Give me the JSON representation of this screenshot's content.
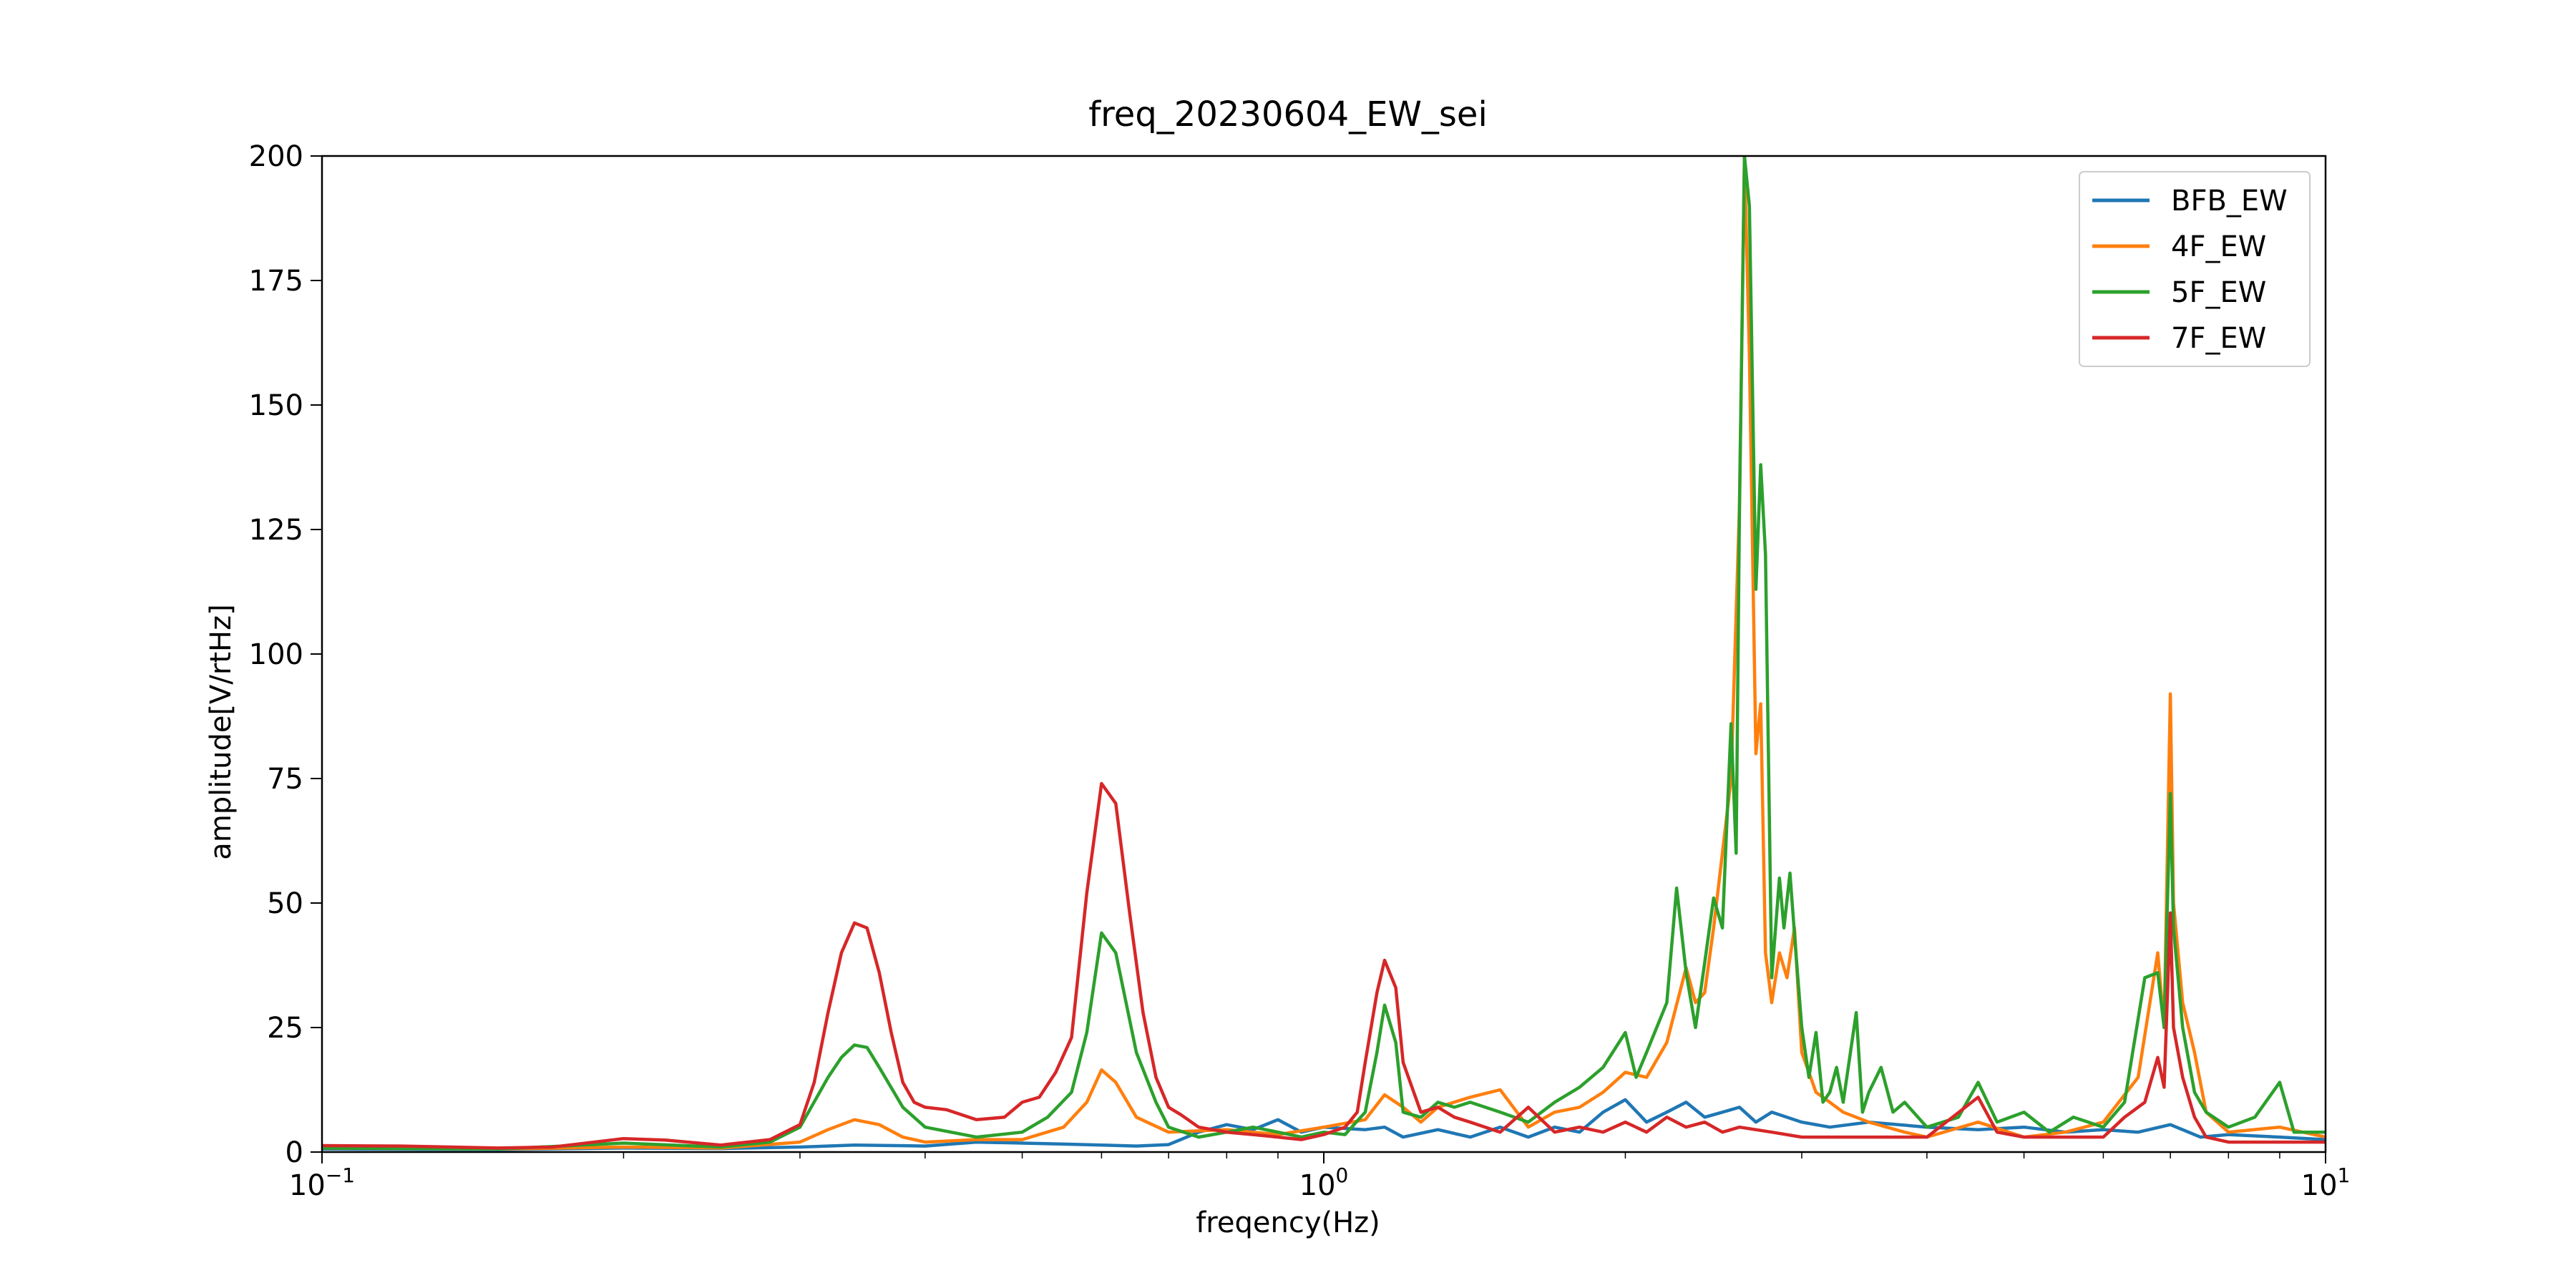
{
  "chart_data": {
    "type": "line",
    "title": "freq_20230604_EW_sei",
    "xlabel": "freqency(Hz)",
    "ylabel": "amplitude[V/rtHz]",
    "x_scale": "log",
    "xlim": [
      0.1,
      10
    ],
    "ylim": [
      0,
      200
    ],
    "x_ticks": [
      {
        "value": 0.1,
        "base": "10",
        "exp": "−1"
      },
      {
        "value": 1,
        "base": "10",
        "exp": "0"
      },
      {
        "value": 10,
        "base": "10",
        "exp": "1"
      }
    ],
    "y_ticks": [
      0,
      25,
      50,
      75,
      100,
      125,
      150,
      175,
      200
    ],
    "grid": false,
    "legend_position": "top-right",
    "series": [
      {
        "name": "BFB_EW",
        "color": "#1f77b4",
        "points": [
          [
            0.1,
            0.6
          ],
          [
            0.15,
            0.5
          ],
          [
            0.2,
            0.8
          ],
          [
            0.25,
            0.7
          ],
          [
            0.3,
            1.0
          ],
          [
            0.34,
            1.4
          ],
          [
            0.4,
            1.2
          ],
          [
            0.45,
            2.0
          ],
          [
            0.5,
            1.8
          ],
          [
            0.55,
            1.6
          ],
          [
            0.6,
            1.4
          ],
          [
            0.65,
            1.2
          ],
          [
            0.7,
            1.5
          ],
          [
            0.75,
            4.0
          ],
          [
            0.8,
            5.5
          ],
          [
            0.85,
            4.5
          ],
          [
            0.9,
            6.5
          ],
          [
            0.95,
            4.0
          ],
          [
            1.0,
            5.0
          ],
          [
            1.1,
            4.5
          ],
          [
            1.15,
            5.0
          ],
          [
            1.2,
            3.0
          ],
          [
            1.3,
            4.5
          ],
          [
            1.4,
            3.0
          ],
          [
            1.5,
            5.0
          ],
          [
            1.6,
            3.0
          ],
          [
            1.7,
            5.0
          ],
          [
            1.8,
            4.0
          ],
          [
            1.9,
            8.0
          ],
          [
            2.0,
            10.5
          ],
          [
            2.1,
            6.0
          ],
          [
            2.2,
            8.0
          ],
          [
            2.3,
            10.0
          ],
          [
            2.4,
            7.0
          ],
          [
            2.5,
            8.0
          ],
          [
            2.6,
            9.0
          ],
          [
            2.7,
            6.0
          ],
          [
            2.8,
            8.0
          ],
          [
            3.0,
            6.0
          ],
          [
            3.2,
            5.0
          ],
          [
            3.5,
            6.0
          ],
          [
            4.0,
            5.0
          ],
          [
            4.5,
            4.5
          ],
          [
            5.0,
            5.0
          ],
          [
            5.5,
            4.0
          ],
          [
            6.0,
            4.5
          ],
          [
            6.5,
            4.0
          ],
          [
            7.0,
            5.5
          ],
          [
            7.5,
            3.0
          ],
          [
            8.0,
            3.5
          ],
          [
            9.0,
            3.0
          ],
          [
            10.0,
            2.5
          ]
        ]
      },
      {
        "name": "4F_EW",
        "color": "#ff7f0e",
        "points": [
          [
            0.1,
            0.8
          ],
          [
            0.15,
            0.6
          ],
          [
            0.2,
            1.0
          ],
          [
            0.25,
            0.8
          ],
          [
            0.3,
            2.0
          ],
          [
            0.32,
            4.5
          ],
          [
            0.34,
            6.5
          ],
          [
            0.36,
            5.5
          ],
          [
            0.38,
            3.0
          ],
          [
            0.4,
            2.0
          ],
          [
            0.45,
            2.5
          ],
          [
            0.5,
            2.5
          ],
          [
            0.55,
            5.0
          ],
          [
            0.58,
            10.0
          ],
          [
            0.6,
            16.5
          ],
          [
            0.62,
            14.0
          ],
          [
            0.65,
            7.0
          ],
          [
            0.7,
            4.0
          ],
          [
            0.8,
            4.5
          ],
          [
            0.9,
            3.5
          ],
          [
            1.0,
            5.0
          ],
          [
            1.1,
            6.5
          ],
          [
            1.15,
            11.5
          ],
          [
            1.2,
            9.0
          ],
          [
            1.25,
            6.0
          ],
          [
            1.3,
            9.0
          ],
          [
            1.4,
            11.0
          ],
          [
            1.5,
            12.5
          ],
          [
            1.6,
            5.0
          ],
          [
            1.7,
            8.0
          ],
          [
            1.8,
            9.0
          ],
          [
            1.9,
            12.0
          ],
          [
            2.0,
            16.0
          ],
          [
            2.1,
            15.0
          ],
          [
            2.2,
            22.0
          ],
          [
            2.3,
            37.0
          ],
          [
            2.35,
            30.0
          ],
          [
            2.4,
            32.0
          ],
          [
            2.45,
            45.0
          ],
          [
            2.5,
            60.0
          ],
          [
            2.55,
            75.0
          ],
          [
            2.6,
            130.0
          ],
          [
            2.63,
            200.0
          ],
          [
            2.66,
            160.0
          ],
          [
            2.7,
            80.0
          ],
          [
            2.73,
            90.0
          ],
          [
            2.76,
            40.0
          ],
          [
            2.8,
            30.0
          ],
          [
            2.85,
            40.0
          ],
          [
            2.9,
            35.0
          ],
          [
            2.95,
            45.0
          ],
          [
            3.0,
            20.0
          ],
          [
            3.1,
            12.0
          ],
          [
            3.2,
            10.0
          ],
          [
            3.3,
            8.0
          ],
          [
            3.5,
            6.0
          ],
          [
            3.8,
            4.0
          ],
          [
            4.0,
            3.0
          ],
          [
            4.5,
            6.0
          ],
          [
            5.0,
            3.0
          ],
          [
            5.5,
            4.0
          ],
          [
            6.0,
            6.0
          ],
          [
            6.5,
            15.0
          ],
          [
            6.8,
            40.0
          ],
          [
            6.9,
            25.0
          ],
          [
            7.0,
            92.0
          ],
          [
            7.05,
            50.0
          ],
          [
            7.2,
            30.0
          ],
          [
            7.4,
            20.0
          ],
          [
            7.6,
            8.0
          ],
          [
            8.0,
            4.0
          ],
          [
            9.0,
            5.0
          ],
          [
            10.0,
            3.0
          ]
        ]
      },
      {
        "name": "5F_EW",
        "color": "#2ca02c",
        "points": [
          [
            0.1,
            0.8
          ],
          [
            0.15,
            0.6
          ],
          [
            0.2,
            1.8
          ],
          [
            0.25,
            1.0
          ],
          [
            0.28,
            2.0
          ],
          [
            0.3,
            5.0
          ],
          [
            0.32,
            15.0
          ],
          [
            0.33,
            19.0
          ],
          [
            0.34,
            21.5
          ],
          [
            0.35,
            21.0
          ],
          [
            0.36,
            17.0
          ],
          [
            0.38,
            9.0
          ],
          [
            0.4,
            5.0
          ],
          [
            0.45,
            3.0
          ],
          [
            0.5,
            4.0
          ],
          [
            0.53,
            7.0
          ],
          [
            0.56,
            12.0
          ],
          [
            0.58,
            24.0
          ],
          [
            0.6,
            44.0
          ],
          [
            0.62,
            40.0
          ],
          [
            0.65,
            20.0
          ],
          [
            0.68,
            10.0
          ],
          [
            0.7,
            5.0
          ],
          [
            0.75,
            3.0
          ],
          [
            0.8,
            4.0
          ],
          [
            0.85,
            5.0
          ],
          [
            0.9,
            4.0
          ],
          [
            0.95,
            3.0
          ],
          [
            1.0,
            4.0
          ],
          [
            1.05,
            3.5
          ],
          [
            1.1,
            8.0
          ],
          [
            1.13,
            20.0
          ],
          [
            1.15,
            29.5
          ],
          [
            1.18,
            22.0
          ],
          [
            1.2,
            8.0
          ],
          [
            1.25,
            7.0
          ],
          [
            1.3,
            10.0
          ],
          [
            1.35,
            9.0
          ],
          [
            1.4,
            10.0
          ],
          [
            1.5,
            8.0
          ],
          [
            1.6,
            6.0
          ],
          [
            1.7,
            10.0
          ],
          [
            1.8,
            13.0
          ],
          [
            1.9,
            17.0
          ],
          [
            2.0,
            24.0
          ],
          [
            2.05,
            15.0
          ],
          [
            2.1,
            20.0
          ],
          [
            2.2,
            30.0
          ],
          [
            2.25,
            53.0
          ],
          [
            2.3,
            36.0
          ],
          [
            2.35,
            25.0
          ],
          [
            2.4,
            38.0
          ],
          [
            2.45,
            51.0
          ],
          [
            2.5,
            45.0
          ],
          [
            2.55,
            86.0
          ],
          [
            2.58,
            60.0
          ],
          [
            2.6,
            130.0
          ],
          [
            2.63,
            200.0
          ],
          [
            2.66,
            190.0
          ],
          [
            2.7,
            113.0
          ],
          [
            2.73,
            138.0
          ],
          [
            2.76,
            120.0
          ],
          [
            2.8,
            35.0
          ],
          [
            2.85,
            55.0
          ],
          [
            2.88,
            45.0
          ],
          [
            2.92,
            56.0
          ],
          [
            2.96,
            40.0
          ],
          [
            3.0,
            25.0
          ],
          [
            3.05,
            15.0
          ],
          [
            3.1,
            24.0
          ],
          [
            3.15,
            10.0
          ],
          [
            3.2,
            12.0
          ],
          [
            3.25,
            17.0
          ],
          [
            3.3,
            10.0
          ],
          [
            3.4,
            28.0
          ],
          [
            3.45,
            8.0
          ],
          [
            3.5,
            12.0
          ],
          [
            3.6,
            17.0
          ],
          [
            3.7,
            8.0
          ],
          [
            3.8,
            10.0
          ],
          [
            4.0,
            5.0
          ],
          [
            4.3,
            7.0
          ],
          [
            4.5,
            14.0
          ],
          [
            4.7,
            6.0
          ],
          [
            5.0,
            8.0
          ],
          [
            5.3,
            4.0
          ],
          [
            5.6,
            7.0
          ],
          [
            6.0,
            5.0
          ],
          [
            6.3,
            10.0
          ],
          [
            6.6,
            35.0
          ],
          [
            6.8,
            36.0
          ],
          [
            6.9,
            25.0
          ],
          [
            7.0,
            72.0
          ],
          [
            7.05,
            45.0
          ],
          [
            7.2,
            25.0
          ],
          [
            7.4,
            12.0
          ],
          [
            7.6,
            8.0
          ],
          [
            8.0,
            5.0
          ],
          [
            8.5,
            7.0
          ],
          [
            9.0,
            14.0
          ],
          [
            9.3,
            4.0
          ],
          [
            10.0,
            4.0
          ]
        ]
      },
      {
        "name": "7F_EW",
        "color": "#d62728",
        "points": [
          [
            0.1,
            1.3
          ],
          [
            0.12,
            1.2
          ],
          [
            0.15,
            0.8
          ],
          [
            0.17,
            1.0
          ],
          [
            0.2,
            2.7
          ],
          [
            0.22,
            2.4
          ],
          [
            0.25,
            1.4
          ],
          [
            0.28,
            2.5
          ],
          [
            0.3,
            5.5
          ],
          [
            0.31,
            14.0
          ],
          [
            0.32,
            28.0
          ],
          [
            0.33,
            40.0
          ],
          [
            0.34,
            46.0
          ],
          [
            0.35,
            45.0
          ],
          [
            0.36,
            36.0
          ],
          [
            0.37,
            24.0
          ],
          [
            0.38,
            14.0
          ],
          [
            0.39,
            10.0
          ],
          [
            0.4,
            9.0
          ],
          [
            0.42,
            8.5
          ],
          [
            0.45,
            6.5
          ],
          [
            0.48,
            7.0
          ],
          [
            0.5,
            10.0
          ],
          [
            0.52,
            11.0
          ],
          [
            0.54,
            16.0
          ],
          [
            0.56,
            23.0
          ],
          [
            0.58,
            52.0
          ],
          [
            0.6,
            74.0
          ],
          [
            0.62,
            70.0
          ],
          [
            0.64,
            48.0
          ],
          [
            0.66,
            28.0
          ],
          [
            0.68,
            15.0
          ],
          [
            0.7,
            9.0
          ],
          [
            0.72,
            7.5
          ],
          [
            0.75,
            5.0
          ],
          [
            0.8,
            4.0
          ],
          [
            0.85,
            3.5
          ],
          [
            0.9,
            3.0
          ],
          [
            0.95,
            2.5
          ],
          [
            1.0,
            3.5
          ],
          [
            1.05,
            5.0
          ],
          [
            1.08,
            8.0
          ],
          [
            1.1,
            18.0
          ],
          [
            1.13,
            32.0
          ],
          [
            1.15,
            38.5
          ],
          [
            1.18,
            33.0
          ],
          [
            1.2,
            18.0
          ],
          [
            1.25,
            8.0
          ],
          [
            1.3,
            9.0
          ],
          [
            1.35,
            7.0
          ],
          [
            1.4,
            6.0
          ],
          [
            1.5,
            4.0
          ],
          [
            1.6,
            9.0
          ],
          [
            1.7,
            4.0
          ],
          [
            1.8,
            5.0
          ],
          [
            1.9,
            4.0
          ],
          [
            2.0,
            6.0
          ],
          [
            2.1,
            4.0
          ],
          [
            2.2,
            7.0
          ],
          [
            2.3,
            5.0
          ],
          [
            2.4,
            6.0
          ],
          [
            2.5,
            4.0
          ],
          [
            2.6,
            5.0
          ],
          [
            2.8,
            4.0
          ],
          [
            3.0,
            3.0
          ],
          [
            3.5,
            3.0
          ],
          [
            4.0,
            3.0
          ],
          [
            4.5,
            11.0
          ],
          [
            4.7,
            4.0
          ],
          [
            5.0,
            3.0
          ],
          [
            5.5,
            3.0
          ],
          [
            6.0,
            3.0
          ],
          [
            6.3,
            7.0
          ],
          [
            6.6,
            10.0
          ],
          [
            6.8,
            19.0
          ],
          [
            6.9,
            13.0
          ],
          [
            7.0,
            48.0
          ],
          [
            7.05,
            25.0
          ],
          [
            7.2,
            15.0
          ],
          [
            7.4,
            7.0
          ],
          [
            7.6,
            3.0
          ],
          [
            8.0,
            2.0
          ],
          [
            9.0,
            2.0
          ],
          [
            10.0,
            2.0
          ]
        ]
      }
    ]
  }
}
